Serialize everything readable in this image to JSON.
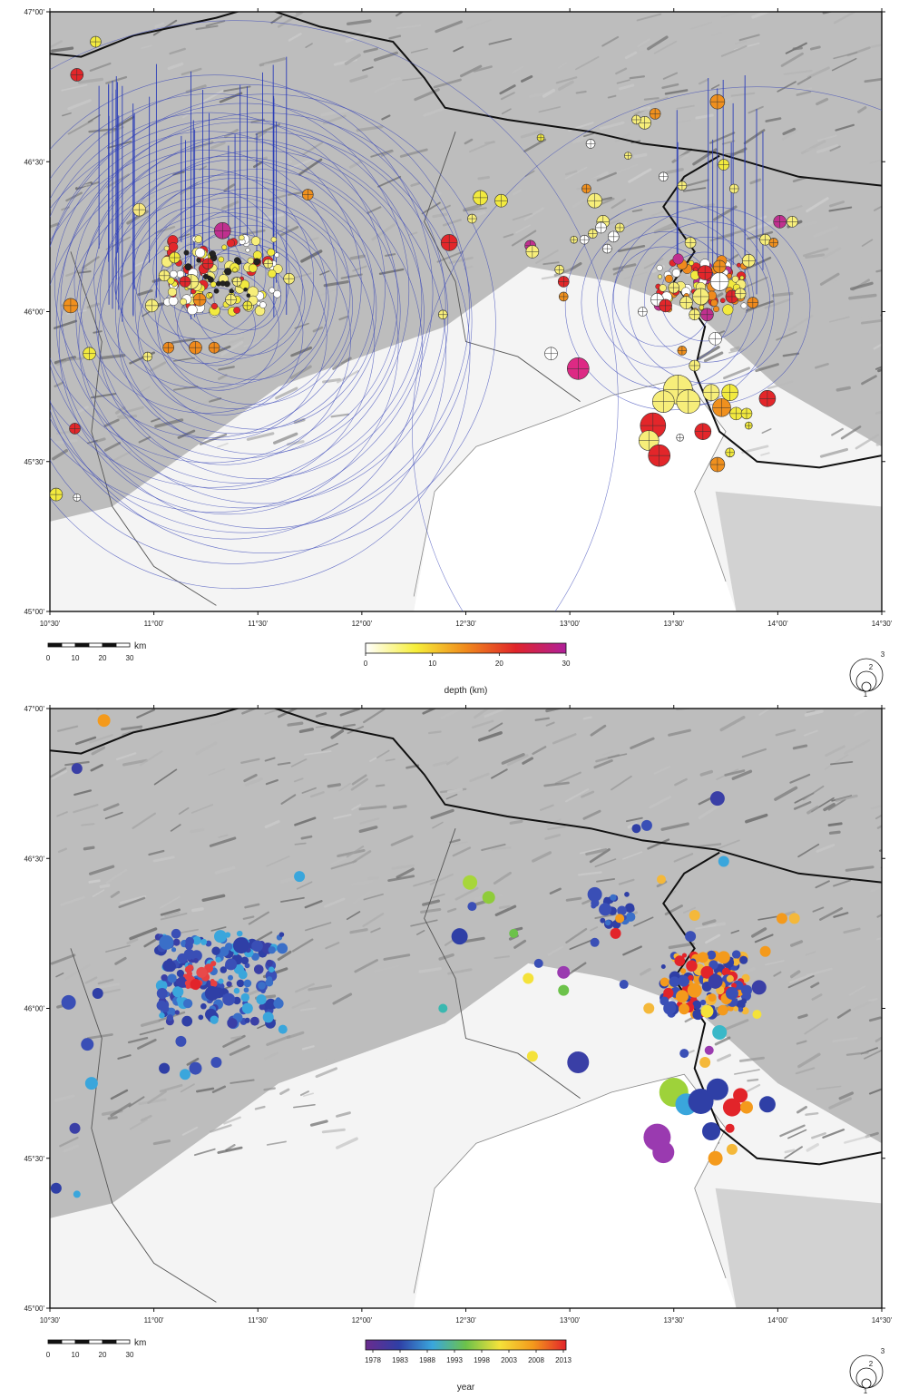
{
  "panels": [
    {
      "id": "depth",
      "axes": {
        "lat_ticks": [
          "47°00'",
          "46°30'",
          "46°00'",
          "45°30'",
          "45°00'"
        ],
        "lon_ticks": [
          "10°30'",
          "11°00'",
          "11°30'",
          "12°00'",
          "12°30'",
          "13°00'",
          "13°30'",
          "14°00'",
          "14°30'"
        ]
      },
      "scale_bar": {
        "unit": "km",
        "ticks": [
          "0",
          "10",
          "20",
          "30"
        ]
      },
      "colorbar": {
        "label": "depth (km)",
        "ticks": [
          "0",
          "10",
          "20",
          "30"
        ],
        "colors": [
          "#ffffff",
          "#f6ee3a",
          "#f08a1c",
          "#e0242a",
          "#b0209a"
        ]
      },
      "size_legend": {
        "labels": [
          "1",
          "2",
          "3"
        ]
      }
    },
    {
      "id": "year",
      "axes": {
        "lat_ticks": [
          "47°00'",
          "46°30'",
          "46°00'",
          "45°30'",
          "45°00'"
        ],
        "lon_ticks": [
          "10°30'",
          "11°00'",
          "11°30'",
          "12°00'",
          "12°30'",
          "13°00'",
          "13°30'",
          "14°00'",
          "14°30'"
        ]
      },
      "scale_bar": {
        "unit": "km",
        "ticks": [
          "0",
          "10",
          "20",
          "30"
        ]
      },
      "colorbar": {
        "label": "year",
        "ticks": [
          "1978",
          "1983",
          "1988",
          "1993",
          "1998",
          "2003",
          "2008",
          "2013"
        ],
        "colors": [
          "#6a2c8e",
          "#2f3fa6",
          "#3aa6dc",
          "#6cc24a",
          "#f4e23a",
          "#f49a1c",
          "#e2242a"
        ]
      },
      "size_legend": {
        "labels": [
          "1",
          "2",
          "3"
        ]
      }
    }
  ],
  "events_depth": [
    {
      "lon": 10.72,
      "lat": 46.9,
      "r": 6,
      "c": "#f2ea3e"
    },
    {
      "lon": 10.63,
      "lat": 46.79,
      "r": 7,
      "c": "#e3262a"
    },
    {
      "lon": 10.6,
      "lat": 46.02,
      "r": 8,
      "c": "#f0901e"
    },
    {
      "lon": 10.69,
      "lat": 45.86,
      "r": 7,
      "c": "#f2ea3e"
    },
    {
      "lon": 10.62,
      "lat": 45.61,
      "r": 6,
      "c": "#e3262a"
    },
    {
      "lon": 10.53,
      "lat": 45.39,
      "r": 7,
      "c": "#f2ea3e"
    },
    {
      "lon": 10.63,
      "lat": 45.38,
      "r": 4,
      "c": "#ffffff"
    },
    {
      "lon": 10.93,
      "lat": 46.34,
      "r": 7,
      "c": "#f7e880"
    },
    {
      "lon": 10.99,
      "lat": 46.02,
      "r": 7,
      "c": "#f7ee7a"
    },
    {
      "lon": 11.18,
      "lat": 46.1,
      "r": 8,
      "c": "#f7ee7a"
    },
    {
      "lon": 11.26,
      "lat": 46.16,
      "r": 6,
      "c": "#e3262a"
    },
    {
      "lon": 11.33,
      "lat": 46.27,
      "r": 9,
      "c": "#c0308f"
    },
    {
      "lon": 11.22,
      "lat": 46.04,
      "r": 7,
      "c": "#f08a1c"
    },
    {
      "lon": 11.07,
      "lat": 45.88,
      "r": 6,
      "c": "#f08a1c"
    },
    {
      "lon": 11.2,
      "lat": 45.88,
      "r": 7,
      "c": "#f08a1c"
    },
    {
      "lon": 11.29,
      "lat": 45.88,
      "r": 6,
      "c": "#f08a1c"
    },
    {
      "lon": 10.97,
      "lat": 45.85,
      "r": 5,
      "c": "#f7ee7a"
    },
    {
      "lon": 11.55,
      "lat": 46.16,
      "r": 5,
      "c": "#f7ee7a"
    },
    {
      "lon": 11.65,
      "lat": 46.11,
      "r": 6,
      "c": "#f7ee7a"
    },
    {
      "lon": 11.74,
      "lat": 46.39,
      "r": 6,
      "c": "#f0901e"
    },
    {
      "lon": 11.4,
      "lat": 46.1,
      "r": 5,
      "c": "#f7ee7a"
    },
    {
      "lon": 11.1,
      "lat": 46.18,
      "r": 6,
      "c": "#f2ea3e"
    },
    {
      "lon": 11.15,
      "lat": 46.1,
      "r": 6,
      "c": "#e3262a"
    },
    {
      "lon": 11.05,
      "lat": 46.12,
      "r": 6,
      "c": "#f7ee7a"
    },
    {
      "lon": 11.37,
      "lat": 46.04,
      "r": 6,
      "c": "#f7ee7a"
    },
    {
      "lon": 11.45,
      "lat": 46.02,
      "r": 5,
      "c": "#f2ea3e"
    },
    {
      "lon": 12.42,
      "lat": 46.23,
      "r": 9,
      "c": "#e3262a"
    },
    {
      "lon": 12.57,
      "lat": 46.38,
      "r": 8,
      "c": "#f2ea3e"
    },
    {
      "lon": 12.67,
      "lat": 46.37,
      "r": 7,
      "c": "#f2ea3e"
    },
    {
      "lon": 12.53,
      "lat": 46.31,
      "r": 5,
      "c": "#f7ee7a"
    },
    {
      "lon": 12.39,
      "lat": 45.99,
      "r": 5,
      "c": "#f7ee7a"
    },
    {
      "lon": 12.81,
      "lat": 46.22,
      "r": 6,
      "c": "#c0308f"
    },
    {
      "lon": 12.82,
      "lat": 46.2,
      "r": 7,
      "c": "#f7ee7a"
    },
    {
      "lon": 12.97,
      "lat": 46.1,
      "r": 6,
      "c": "#e3262a"
    },
    {
      "lon": 12.97,
      "lat": 46.05,
      "r": 5,
      "c": "#f0901e"
    },
    {
      "lon": 12.95,
      "lat": 46.14,
      "r": 5,
      "c": "#f7ee7a"
    },
    {
      "lon": 12.91,
      "lat": 45.86,
      "r": 7,
      "c": "#ffffff"
    },
    {
      "lon": 13.04,
      "lat": 45.81,
      "r": 12,
      "c": "#dd2a84"
    },
    {
      "lon": 13.02,
      "lat": 46.24,
      "r": 4,
      "c": "#f7ee7a"
    },
    {
      "lon": 13.08,
      "lat": 46.41,
      "r": 5,
      "c": "#f0901e"
    },
    {
      "lon": 13.12,
      "lat": 46.37,
      "r": 8,
      "c": "#f7ee7a"
    },
    {
      "lon": 13.16,
      "lat": 46.3,
      "r": 7,
      "c": "#f7ee7a"
    },
    {
      "lon": 13.21,
      "lat": 46.25,
      "r": 6,
      "c": "#ffffff"
    },
    {
      "lon": 13.15,
      "lat": 46.28,
      "r": 6,
      "c": "#ffffff"
    },
    {
      "lon": 13.11,
      "lat": 46.26,
      "r": 5,
      "c": "#f7ee7a"
    },
    {
      "lon": 13.18,
      "lat": 46.21,
      "r": 5,
      "c": "#ffffff"
    },
    {
      "lon": 13.07,
      "lat": 46.24,
      "r": 5,
      "c": "#ffffff"
    },
    {
      "lon": 13.24,
      "lat": 46.28,
      "r": 5,
      "c": "#f7ee7a"
    },
    {
      "lon": 13.28,
      "lat": 46.52,
      "r": 4,
      "c": "#f7ee7a"
    },
    {
      "lon": 13.1,
      "lat": 46.56,
      "r": 5,
      "c": "#ffffff"
    },
    {
      "lon": 12.86,
      "lat": 46.58,
      "r": 4,
      "c": "#f2ea3e"
    },
    {
      "lon": 13.36,
      "lat": 46.63,
      "r": 7,
      "c": "#f7ee7a"
    },
    {
      "lon": 13.41,
      "lat": 46.66,
      "r": 6,
      "c": "#f0901e"
    },
    {
      "lon": 13.32,
      "lat": 46.64,
      "r": 5,
      "c": "#f7ee7a"
    },
    {
      "lon": 13.45,
      "lat": 46.45,
      "r": 5,
      "c": "#ffffff"
    },
    {
      "lon": 13.54,
      "lat": 46.42,
      "r": 5,
      "c": "#f7ee7a"
    },
    {
      "lon": 13.58,
      "lat": 46.23,
      "r": 6,
      "c": "#f7ee7a"
    },
    {
      "lon": 13.42,
      "lat": 46.04,
      "r": 7,
      "c": "#ffffff"
    },
    {
      "lon": 13.35,
      "lat": 46.0,
      "r": 5,
      "c": "#ffffff"
    },
    {
      "lon": 13.71,
      "lat": 46.7,
      "r": 8,
      "c": "#f0901e"
    },
    {
      "lon": 13.74,
      "lat": 46.49,
      "r": 6,
      "c": "#f2ea3e"
    },
    {
      "lon": 13.79,
      "lat": 46.41,
      "r": 5,
      "c": "#f7ee7a"
    },
    {
      "lon": 13.86,
      "lat": 46.17,
      "r": 7,
      "c": "#f7ee7a"
    },
    {
      "lon": 13.94,
      "lat": 46.24,
      "r": 6,
      "c": "#f7ee7a"
    },
    {
      "lon": 14.01,
      "lat": 46.3,
      "r": 7,
      "c": "#c0308f"
    },
    {
      "lon": 14.07,
      "lat": 46.3,
      "r": 6,
      "c": "#f7ee7a"
    },
    {
      "lon": 13.98,
      "lat": 46.23,
      "r": 5,
      "c": "#f0901e"
    },
    {
      "lon": 13.72,
      "lat": 46.1,
      "r": 10,
      "c": "#ffffff"
    },
    {
      "lon": 13.65,
      "lat": 46.13,
      "r": 8,
      "c": "#e3262a"
    },
    {
      "lon": 13.72,
      "lat": 46.15,
      "r": 7,
      "c": "#f0901e"
    },
    {
      "lon": 13.63,
      "lat": 46.05,
      "r": 9,
      "c": "#f7ee7a"
    },
    {
      "lon": 13.56,
      "lat": 46.03,
      "r": 7,
      "c": "#f7ee7a"
    },
    {
      "lon": 13.5,
      "lat": 46.08,
      "r": 6,
      "c": "#f7ee7a"
    },
    {
      "lon": 13.46,
      "lat": 46.02,
      "r": 7,
      "c": "#e3262a"
    },
    {
      "lon": 13.66,
      "lat": 45.99,
      "r": 7,
      "c": "#c0308f"
    },
    {
      "lon": 13.6,
      "lat": 45.99,
      "r": 6,
      "c": "#f7ee7a"
    },
    {
      "lon": 13.7,
      "lat": 45.91,
      "r": 7,
      "c": "#ffffff"
    },
    {
      "lon": 13.78,
      "lat": 46.05,
      "r": 7,
      "c": "#e3262a"
    },
    {
      "lon": 13.82,
      "lat": 46.06,
      "r": 6,
      "c": "#f7ee7a"
    },
    {
      "lon": 13.88,
      "lat": 46.03,
      "r": 6,
      "c": "#f08a1c"
    },
    {
      "lon": 13.54,
      "lat": 45.87,
      "r": 5,
      "c": "#f0901e"
    },
    {
      "lon": 13.6,
      "lat": 45.82,
      "r": 6,
      "c": "#f7ee7a"
    },
    {
      "lon": 13.52,
      "lat": 45.74,
      "r": 16,
      "c": "#f7ee7a"
    },
    {
      "lon": 13.45,
      "lat": 45.7,
      "r": 12,
      "c": "#f7ee7a"
    },
    {
      "lon": 13.57,
      "lat": 45.7,
      "r": 13,
      "c": "#f7ee7a"
    },
    {
      "lon": 13.68,
      "lat": 45.73,
      "r": 9,
      "c": "#f7ee7a"
    },
    {
      "lon": 13.73,
      "lat": 45.68,
      "r": 10,
      "c": "#f0901e"
    },
    {
      "lon": 13.77,
      "lat": 45.73,
      "r": 9,
      "c": "#f2ea3e"
    },
    {
      "lon": 13.8,
      "lat": 45.66,
      "r": 7,
      "c": "#f2ea3e"
    },
    {
      "lon": 13.85,
      "lat": 45.66,
      "r": 6,
      "c": "#f2ea3e"
    },
    {
      "lon": 13.95,
      "lat": 45.71,
      "r": 9,
      "c": "#e3262a"
    },
    {
      "lon": 13.64,
      "lat": 45.6,
      "r": 9,
      "c": "#e3262a"
    },
    {
      "lon": 13.4,
      "lat": 45.62,
      "r": 14,
      "c": "#e3262a"
    },
    {
      "lon": 13.38,
      "lat": 45.57,
      "r": 11,
      "c": "#f7ee7a"
    },
    {
      "lon": 13.43,
      "lat": 45.52,
      "r": 12,
      "c": "#e3262a"
    },
    {
      "lon": 13.53,
      "lat": 45.58,
      "r": 4,
      "c": "#ffffff"
    },
    {
      "lon": 13.71,
      "lat": 45.49,
      "r": 8,
      "c": "#f0901e"
    },
    {
      "lon": 13.77,
      "lat": 45.53,
      "r": 5,
      "c": "#f2ea3e"
    },
    {
      "lon": 13.86,
      "lat": 45.62,
      "r": 4,
      "c": "#f2ea3e"
    }
  ],
  "events_year": [
    {
      "lon": 10.76,
      "lat": 46.96,
      "r": 7,
      "c": "#f49a1c"
    },
    {
      "lon": 10.63,
      "lat": 46.8,
      "r": 6,
      "c": "#3a3fa6"
    },
    {
      "lon": 10.59,
      "lat": 46.02,
      "r": 8,
      "c": "#3a4fb6"
    },
    {
      "lon": 10.68,
      "lat": 45.88,
      "r": 7,
      "c": "#3a4fb6"
    },
    {
      "lon": 10.7,
      "lat": 45.75,
      "r": 7,
      "c": "#3aa6dc"
    },
    {
      "lon": 10.62,
      "lat": 45.6,
      "r": 6,
      "c": "#3a3fa6"
    },
    {
      "lon": 10.53,
      "lat": 45.4,
      "r": 6,
      "c": "#2f3fa6"
    },
    {
      "lon": 10.63,
      "lat": 45.38,
      "r": 4,
      "c": "#3aa6dc"
    },
    {
      "lon": 10.73,
      "lat": 46.05,
      "r": 6,
      "c": "#2f3fa6"
    },
    {
      "lon": 11.06,
      "lat": 46.22,
      "r": 8,
      "c": "#3a6fc8"
    },
    {
      "lon": 11.42,
      "lat": 46.21,
      "r": 9,
      "c": "#2f3fa6"
    },
    {
      "lon": 11.32,
      "lat": 46.24,
      "r": 7,
      "c": "#3aa6dc"
    },
    {
      "lon": 11.2,
      "lat": 46.08,
      "r": 6,
      "c": "#e2242a"
    },
    {
      "lon": 11.23,
      "lat": 46.12,
      "r": 6,
      "c": "#e84a4a"
    },
    {
      "lon": 11.28,
      "lat": 46.05,
      "r": 8,
      "c": "#2f3fa6"
    },
    {
      "lon": 11.36,
      "lat": 46.03,
      "r": 7,
      "c": "#3a4fb6"
    },
    {
      "lon": 11.45,
      "lat": 46.0,
      "r": 6,
      "c": "#3aa6dc"
    },
    {
      "lon": 11.55,
      "lat": 45.97,
      "r": 6,
      "c": "#3aa6dc"
    },
    {
      "lon": 11.62,
      "lat": 45.93,
      "r": 5,
      "c": "#3aa6dc"
    },
    {
      "lon": 11.7,
      "lat": 46.44,
      "r": 6,
      "c": "#3aa6dc"
    },
    {
      "lon": 11.13,
      "lat": 45.89,
      "r": 6,
      "c": "#3a4fb6"
    },
    {
      "lon": 11.2,
      "lat": 45.8,
      "r": 7,
      "c": "#3a4fb6"
    },
    {
      "lon": 11.3,
      "lat": 45.82,
      "r": 6,
      "c": "#3a4fb6"
    },
    {
      "lon": 11.05,
      "lat": 45.8,
      "r": 6,
      "c": "#2f3fa6"
    },
    {
      "lon": 11.15,
      "lat": 45.78,
      "r": 6,
      "c": "#3aa6dc"
    },
    {
      "lon": 11.08,
      "lat": 46.14,
      "r": 6,
      "c": "#2f3fa6"
    },
    {
      "lon": 11.17,
      "lat": 46.18,
      "r": 6,
      "c": "#3a4fb6"
    },
    {
      "lon": 11.04,
      "lat": 46.05,
      "r": 6,
      "c": "#3a4fb6"
    },
    {
      "lon": 12.47,
      "lat": 46.24,
      "r": 9,
      "c": "#2f3fa6"
    },
    {
      "lon": 12.52,
      "lat": 46.42,
      "r": 8,
      "c": "#a7d63a"
    },
    {
      "lon": 12.61,
      "lat": 46.37,
      "r": 7,
      "c": "#8fcc3a"
    },
    {
      "lon": 12.53,
      "lat": 46.34,
      "r": 5,
      "c": "#3a4fb6"
    },
    {
      "lon": 12.39,
      "lat": 46.0,
      "r": 5,
      "c": "#3ab8b0"
    },
    {
      "lon": 12.8,
      "lat": 46.1,
      "r": 6,
      "c": "#f4e23a"
    },
    {
      "lon": 12.85,
      "lat": 46.15,
      "r": 5,
      "c": "#3a4fb6"
    },
    {
      "lon": 12.73,
      "lat": 46.25,
      "r": 5,
      "c": "#6cc24a"
    },
    {
      "lon": 12.97,
      "lat": 46.12,
      "r": 7,
      "c": "#9a3ab0"
    },
    {
      "lon": 12.97,
      "lat": 46.06,
      "r": 6,
      "c": "#6cc24a"
    },
    {
      "lon": 13.04,
      "lat": 45.82,
      "r": 12,
      "c": "#3a3fa6"
    },
    {
      "lon": 12.82,
      "lat": 45.84,
      "r": 6,
      "c": "#f4e23a"
    },
    {
      "lon": 13.12,
      "lat": 46.38,
      "r": 8,
      "c": "#3a4fb6"
    },
    {
      "lon": 13.17,
      "lat": 46.33,
      "r": 7,
      "c": "#3a4fb6"
    },
    {
      "lon": 13.22,
      "lat": 46.25,
      "r": 6,
      "c": "#e2242a"
    },
    {
      "lon": 13.24,
      "lat": 46.3,
      "r": 5,
      "c": "#f49a1c"
    },
    {
      "lon": 13.12,
      "lat": 46.22,
      "r": 5,
      "c": "#3a4fb6"
    },
    {
      "lon": 13.26,
      "lat": 46.08,
      "r": 5,
      "c": "#3a4fb6"
    },
    {
      "lon": 13.32,
      "lat": 46.6,
      "r": 5,
      "c": "#2f3fa6"
    },
    {
      "lon": 13.37,
      "lat": 46.61,
      "r": 6,
      "c": "#3a4fb6"
    },
    {
      "lon": 13.71,
      "lat": 46.7,
      "r": 8,
      "c": "#3a3fa6"
    },
    {
      "lon": 13.74,
      "lat": 46.49,
      "r": 6,
      "c": "#3aa6dc"
    },
    {
      "lon": 13.44,
      "lat": 46.43,
      "r": 5,
      "c": "#f4b83a"
    },
    {
      "lon": 13.6,
      "lat": 46.31,
      "r": 6,
      "c": "#f4b83a"
    },
    {
      "lon": 13.58,
      "lat": 46.24,
      "r": 6,
      "c": "#3a4fb6"
    },
    {
      "lon": 13.64,
      "lat": 46.17,
      "r": 6,
      "c": "#f49a1c"
    },
    {
      "lon": 13.74,
      "lat": 46.17,
      "r": 7,
      "c": "#f49a1c"
    },
    {
      "lon": 13.66,
      "lat": 46.12,
      "r": 7,
      "c": "#e2242a"
    },
    {
      "lon": 13.6,
      "lat": 46.06,
      "r": 8,
      "c": "#f49a1c"
    },
    {
      "lon": 13.54,
      "lat": 46.04,
      "r": 7,
      "c": "#f49a1c"
    },
    {
      "lon": 13.7,
      "lat": 46.09,
      "r": 8,
      "c": "#3a3fa6"
    },
    {
      "lon": 13.78,
      "lat": 46.05,
      "r": 7,
      "c": "#3a4fb6"
    },
    {
      "lon": 13.85,
      "lat": 46.06,
      "r": 6,
      "c": "#3a4fb6"
    },
    {
      "lon": 13.48,
      "lat": 46.0,
      "r": 7,
      "c": "#3a4fb6"
    },
    {
      "lon": 13.38,
      "lat": 46.0,
      "r": 6,
      "c": "#f4b83a"
    },
    {
      "lon": 13.66,
      "lat": 45.99,
      "r": 7,
      "c": "#f4e23a"
    },
    {
      "lon": 13.72,
      "lat": 45.92,
      "r": 8,
      "c": "#3ab8c8"
    },
    {
      "lon": 13.67,
      "lat": 45.86,
      "r": 5,
      "c": "#9a3ab0"
    },
    {
      "lon": 13.55,
      "lat": 45.85,
      "r": 5,
      "c": "#3a4fb6"
    },
    {
      "lon": 14.02,
      "lat": 46.3,
      "r": 6,
      "c": "#f49a1c"
    },
    {
      "lon": 14.08,
      "lat": 46.3,
      "r": 6,
      "c": "#f4b83a"
    },
    {
      "lon": 13.94,
      "lat": 46.19,
      "r": 6,
      "c": "#f49a1c"
    },
    {
      "lon": 13.91,
      "lat": 46.07,
      "r": 8,
      "c": "#3a3fa6"
    },
    {
      "lon": 13.9,
      "lat": 45.98,
      "r": 5,
      "c": "#f4e23a"
    },
    {
      "lon": 13.5,
      "lat": 45.72,
      "r": 16,
      "c": "#9ed23a"
    },
    {
      "lon": 13.56,
      "lat": 45.68,
      "r": 12,
      "c": "#3aa6dc"
    },
    {
      "lon": 13.63,
      "lat": 45.69,
      "r": 14,
      "c": "#2f3fa6"
    },
    {
      "lon": 13.71,
      "lat": 45.73,
      "r": 12,
      "c": "#2f3fa6"
    },
    {
      "lon": 13.78,
      "lat": 45.67,
      "r": 10,
      "c": "#e2242a"
    },
    {
      "lon": 13.85,
      "lat": 45.67,
      "r": 7,
      "c": "#f49a1c"
    },
    {
      "lon": 13.82,
      "lat": 45.71,
      "r": 8,
      "c": "#e2242a"
    },
    {
      "lon": 13.95,
      "lat": 45.68,
      "r": 9,
      "c": "#2f3fa6"
    },
    {
      "lon": 13.65,
      "lat": 45.82,
      "r": 6,
      "c": "#f4b83a"
    },
    {
      "lon": 13.68,
      "lat": 45.59,
      "r": 10,
      "c": "#2f3fa6"
    },
    {
      "lon": 13.42,
      "lat": 45.57,
      "r": 15,
      "c": "#9a3ab0"
    },
    {
      "lon": 13.45,
      "lat": 45.52,
      "r": 12,
      "c": "#9a3ab0"
    },
    {
      "lon": 13.7,
      "lat": 45.5,
      "r": 8,
      "c": "#f49a1c"
    },
    {
      "lon": 13.78,
      "lat": 45.53,
      "r": 6,
      "c": "#f4b83a"
    },
    {
      "lon": 13.77,
      "lat": 45.6,
      "r": 5,
      "c": "#e2242a"
    }
  ]
}
